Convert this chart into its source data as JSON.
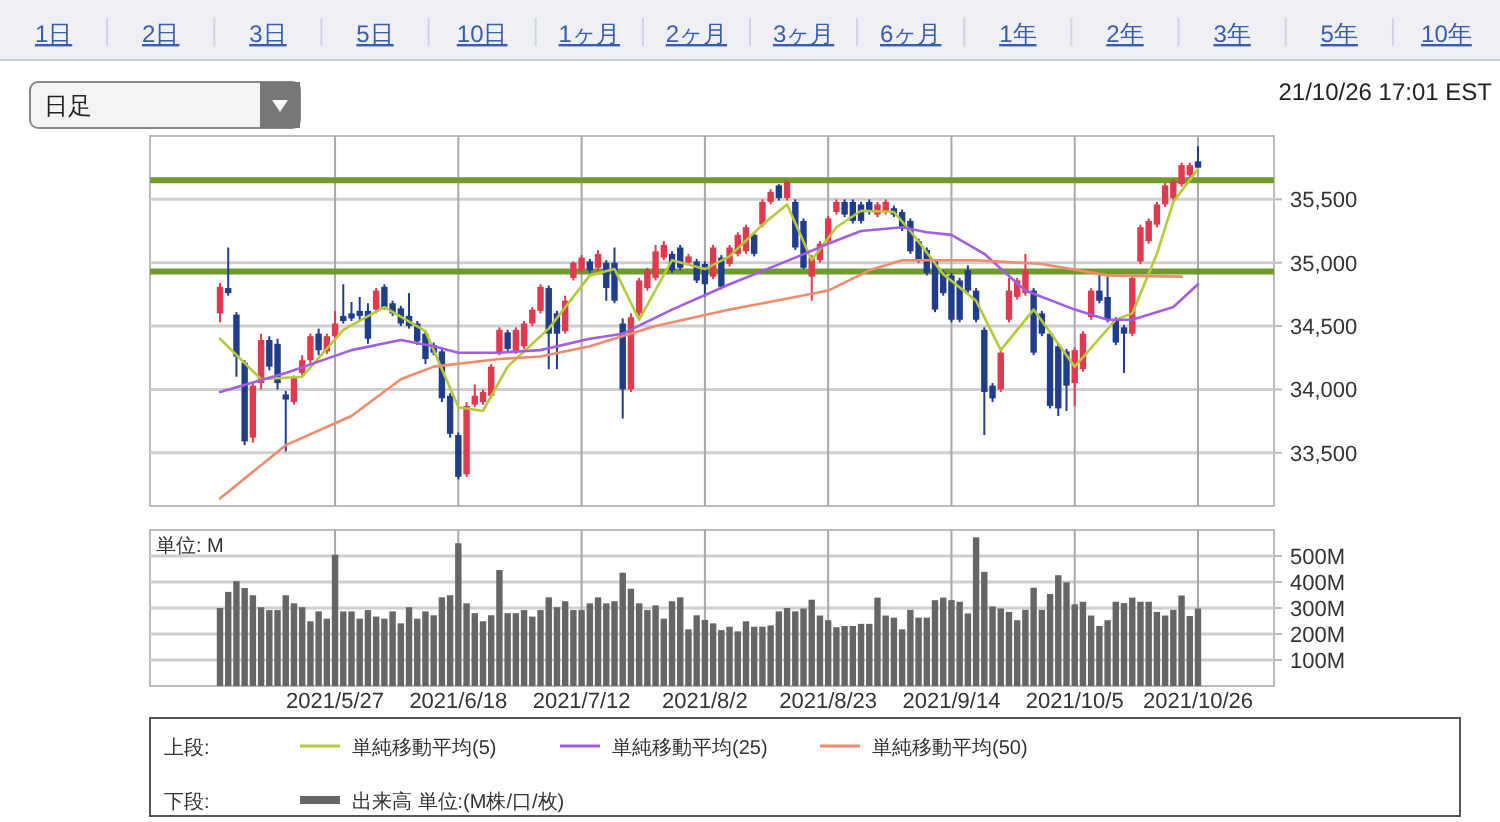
{
  "chart_data": [
    {
      "type": "candlestick",
      "legend": "bottom",
      "legend_title": "上段:",
      "grid": true,
      "tick_labels": "y",
      "annotations": [
        "1日",
        "2日",
        "3日",
        "5日",
        "10日",
        "1ヶ月",
        "2ヶ月",
        "3ヶ月",
        "6ヶ月",
        "1年",
        "2年",
        "3年",
        "5年",
        "10年",
        "日足",
        "21/10/26 17:01 EST"
      ],
      "categories": [
        null,
        null,
        null,
        null,
        null,
        null,
        null,
        null,
        null,
        null,
        null,
        null,
        null,
        null,
        "2021/5/27",
        null,
        null,
        null,
        null,
        null,
        null,
        null,
        null,
        null,
        null,
        null,
        null,
        null,
        null,
        "2021/6/18",
        null,
        null,
        null,
        null,
        null,
        null,
        null,
        null,
        null,
        null,
        null,
        null,
        null,
        null,
        "2021/7/12",
        null,
        null,
        null,
        null,
        null,
        null,
        null,
        null,
        null,
        null,
        null,
        null,
        null,
        null,
        "2021/8/2",
        null,
        null,
        null,
        null,
        null,
        null,
        null,
        null,
        null,
        null,
        null,
        null,
        null,
        null,
        "2021/8/23",
        null,
        null,
        null,
        null,
        null,
        null,
        null,
        null,
        null,
        null,
        null,
        null,
        null,
        null,
        "2021/9/14",
        null,
        null,
        null,
        null,
        null,
        null,
        null,
        null,
        null,
        null,
        null,
        null,
        null,
        null,
        "2021/10/5",
        null,
        null,
        null,
        null,
        null,
        null,
        null,
        null,
        null,
        null,
        null,
        null,
        null,
        null,
        "2021/10/26"
      ],
      "ylim": [
        33080,
        36000
      ],
      "yticks": [
        {
          "value": 33500,
          "label": "33,500"
        },
        {
          "value": 34000,
          "label": "34,000"
        },
        {
          "value": 34500,
          "label": "34,500"
        },
        {
          "value": 35000,
          "label": "35,000"
        },
        {
          "value": 35500,
          "label": "35,500"
        }
      ],
      "ref_lines": [
        {
          "axis": "y",
          "value": 35650,
          "color": "#6f9a2c"
        },
        {
          "axis": "y",
          "value": 34930,
          "color": "#6f9a2c"
        }
      ],
      "ohlc": [
        [
          34600,
          34840,
          34530,
          34810
        ],
        [
          34800,
          35120,
          34740,
          34760
        ],
        [
          34590,
          34610,
          34100,
          34260
        ],
        [
          34210,
          34230,
          33560,
          33590
        ],
        [
          33620,
          34060,
          33580,
          34030
        ],
        [
          34050,
          34440,
          34000,
          34390
        ],
        [
          34390,
          34420,
          34150,
          34180
        ],
        [
          34360,
          34400,
          34000,
          34050
        ],
        [
          33960,
          33990,
          33510,
          33920
        ],
        [
          33900,
          34110,
          33880,
          34100
        ],
        [
          34130,
          34270,
          34110,
          34230
        ],
        [
          34230,
          34440,
          34200,
          34420
        ],
        [
          34440,
          34480,
          34270,
          34310
        ],
        [
          34300,
          34440,
          34280,
          34420
        ],
        [
          34420,
          34620,
          34400,
          34520
        ],
        [
          34580,
          34830,
          34520,
          34540
        ],
        [
          34600,
          34690,
          34540,
          34560
        ],
        [
          34620,
          34730,
          34540,
          34580
        ],
        [
          34620,
          34680,
          34360,
          34400
        ],
        [
          34630,
          34800,
          34600,
          34780
        ],
        [
          34810,
          34830,
          34630,
          34650
        ],
        [
          34680,
          34700,
          34580,
          34600
        ],
        [
          34640,
          34660,
          34500,
          34520
        ],
        [
          34580,
          34760,
          34480,
          34500
        ],
        [
          34520,
          34540,
          34350,
          34380
        ],
        [
          34440,
          34460,
          34200,
          34240
        ],
        [
          34350,
          34370,
          34270,
          34290
        ],
        [
          34300,
          34320,
          33900,
          33930
        ],
        [
          33950,
          33970,
          33620,
          33650
        ],
        [
          33640,
          33660,
          33290,
          33310
        ],
        [
          33330,
          33900,
          33310,
          33870
        ],
        [
          33880,
          34040,
          33860,
          33950
        ],
        [
          33900,
          34000,
          33880,
          33980
        ],
        [
          33950,
          34200,
          33930,
          34180
        ],
        [
          34290,
          34490,
          34270,
          34470
        ],
        [
          34450,
          34470,
          34300,
          34320
        ],
        [
          34300,
          34490,
          34280,
          34470
        ],
        [
          34340,
          34540,
          34320,
          34520
        ],
        [
          34520,
          34650,
          34500,
          34630
        ],
        [
          34620,
          34830,
          34600,
          34810
        ],
        [
          34800,
          34820,
          34160,
          34440
        ],
        [
          34600,
          34620,
          34160,
          34440
        ],
        [
          34460,
          34740,
          34440,
          34700
        ],
        [
          34880,
          35010,
          34860,
          35000
        ],
        [
          34940,
          35060,
          34920,
          35040
        ],
        [
          35010,
          35030,
          34920,
          34940
        ],
        [
          34960,
          35100,
          34940,
          35070
        ],
        [
          35000,
          35020,
          34700,
          34800
        ],
        [
          35000,
          35120,
          34680,
          34700
        ],
        [
          34520,
          34560,
          33770,
          34000
        ],
        [
          34000,
          34600,
          33980,
          34570
        ],
        [
          34600,
          34880,
          34580,
          34860
        ],
        [
          34800,
          34960,
          34780,
          34940
        ],
        [
          34880,
          35140,
          34860,
          35090
        ],
        [
          35040,
          35170,
          35020,
          35140
        ],
        [
          35070,
          35090,
          34920,
          34940
        ],
        [
          35120,
          35140,
          34940,
          34960
        ],
        [
          35000,
          35070,
          34980,
          35050
        ],
        [
          35010,
          35030,
          34840,
          34860
        ],
        [
          34990,
          35010,
          34730,
          34830
        ],
        [
          34890,
          35140,
          34870,
          35120
        ],
        [
          35040,
          35060,
          34790,
          34810
        ],
        [
          34990,
          35140,
          34970,
          35120
        ],
        [
          35070,
          35240,
          35050,
          35220
        ],
        [
          35090,
          35300,
          35070,
          35280
        ],
        [
          35220,
          35240,
          35050,
          35070
        ],
        [
          35300,
          35500,
          35280,
          35480
        ],
        [
          35480,
          35580,
          35460,
          35560
        ],
        [
          35610,
          35620,
          35490,
          35510
        ],
        [
          35510,
          35650,
          35490,
          35640
        ],
        [
          35480,
          35500,
          35100,
          35120
        ],
        [
          35330,
          35350,
          34950,
          34960
        ],
        [
          34890,
          35060,
          34700,
          35040
        ],
        [
          35020,
          35170,
          35000,
          35150
        ],
        [
          35170,
          35370,
          35150,
          35350
        ],
        [
          35400,
          35500,
          35380,
          35480
        ],
        [
          35480,
          35500,
          35360,
          35380
        ],
        [
          35480,
          35500,
          35310,
          35330
        ],
        [
          35460,
          35480,
          35310,
          35330
        ],
        [
          35480,
          35500,
          35380,
          35400
        ],
        [
          35380,
          35480,
          35360,
          35460
        ],
        [
          35400,
          35500,
          35380,
          35480
        ],
        [
          35430,
          35450,
          35360,
          35380
        ],
        [
          35400,
          35420,
          35250,
          35270
        ],
        [
          35330,
          35350,
          35070,
          35090
        ],
        [
          35170,
          35190,
          35000,
          35020
        ],
        [
          35100,
          35120,
          34900,
          34920
        ],
        [
          35010,
          35030,
          34610,
          34630
        ],
        [
          34920,
          34940,
          34740,
          34760
        ],
        [
          34900,
          34920,
          34530,
          34550
        ],
        [
          34860,
          34880,
          34530,
          34550
        ],
        [
          34940,
          34980,
          34760,
          34780
        ],
        [
          34780,
          34800,
          34530,
          34550
        ],
        [
          34470,
          34490,
          33640,
          33980
        ],
        [
          34030,
          34050,
          33900,
          33930
        ],
        [
          34000,
          34310,
          33980,
          34290
        ],
        [
          34550,
          34880,
          34530,
          34780
        ],
        [
          34730,
          34880,
          34710,
          34860
        ],
        [
          34760,
          35070,
          34740,
          34940
        ],
        [
          34780,
          34800,
          34270,
          34290
        ],
        [
          34600,
          34620,
          34420,
          34440
        ],
        [
          34440,
          34460,
          33850,
          33870
        ],
        [
          34340,
          34360,
          33790,
          33850
        ],
        [
          34300,
          34320,
          33830,
          34030
        ],
        [
          34050,
          34330,
          33870,
          34310
        ],
        [
          34160,
          34460,
          34140,
          34440
        ],
        [
          34570,
          34800,
          34550,
          34780
        ],
        [
          34780,
          34910,
          34680,
          34700
        ],
        [
          34730,
          34890,
          34530,
          34550
        ],
        [
          34550,
          34570,
          34350,
          34370
        ],
        [
          34490,
          34510,
          34130,
          34440
        ],
        [
          34440,
          34900,
          34420,
          34880
        ],
        [
          35010,
          35300,
          34990,
          35280
        ],
        [
          35170,
          35350,
          35150,
          35330
        ],
        [
          35300,
          35480,
          35280,
          35460
        ],
        [
          35460,
          35630,
          35440,
          35610
        ],
        [
          35510,
          35660,
          35490,
          35640
        ],
        [
          35620,
          35790,
          35600,
          35770
        ],
        [
          35690,
          35790,
          35670,
          35770
        ],
        [
          35800,
          35920,
          35740,
          35750
        ]
      ],
      "colors": [
        "#e03a4e",
        "#203c8c",
        "#203c8c",
        "#203c8c",
        "#e03a4e",
        "#e03a4e",
        "#203c8c",
        "#203c8c",
        "#203c8c",
        "#e03a4e",
        "#e03a4e",
        "#e03a4e",
        "#203c8c",
        "#e03a4e",
        "#e03a4e",
        "#203c8c",
        "#203c8c",
        "#203c8c",
        "#203c8c",
        "#e03a4e",
        "#203c8c",
        "#203c8c",
        "#203c8c",
        "#203c8c",
        "#203c8c",
        "#203c8c",
        "#203c8c",
        "#203c8c",
        "#203c8c",
        "#203c8c",
        "#e03a4e",
        "#e03a4e",
        "#e03a4e",
        "#e03a4e",
        "#e03a4e",
        "#203c8c",
        "#e03a4e",
        "#e03a4e",
        "#e03a4e",
        "#e03a4e",
        "#203c8c",
        "#203c8c",
        "#e03a4e",
        "#e03a4e",
        "#e03a4e",
        "#203c8c",
        "#e03a4e",
        "#203c8c",
        "#203c8c",
        "#203c8c",
        "#e03a4e",
        "#e03a4e",
        "#e03a4e",
        "#e03a4e",
        "#e03a4e",
        "#203c8c",
        "#203c8c",
        "#e03a4e",
        "#203c8c",
        "#203c8c",
        "#e03a4e",
        "#203c8c",
        "#e03a4e",
        "#e03a4e",
        "#e03a4e",
        "#203c8c",
        "#e03a4e",
        "#e03a4e",
        "#203c8c",
        "#e03a4e",
        "#203c8c",
        "#203c8c",
        "#e03a4e",
        "#e03a4e",
        "#e03a4e",
        "#e03a4e",
        "#203c8c",
        "#203c8c",
        "#203c8c",
        "#203c8c",
        "#e03a4e",
        "#e03a4e",
        "#203c8c",
        "#203c8c",
        "#203c8c",
        "#203c8c",
        "#203c8c",
        "#203c8c",
        "#203c8c",
        "#203c8c",
        "#203c8c",
        "#203c8c",
        "#203c8c",
        "#203c8c",
        "#203c8c",
        "#e03a4e",
        "#e03a4e",
        "#e03a4e",
        "#e03a4e",
        "#203c8c",
        "#203c8c",
        "#203c8c",
        "#203c8c",
        "#203c8c",
        "#e03a4e",
        "#e03a4e",
        "#e03a4e",
        "#203c8c",
        "#203c8c",
        "#203c8c",
        "#203c8c",
        "#e03a4e",
        "#e03a4e",
        "#e03a4e",
        "#e03a4e",
        "#e03a4e",
        "#e03a4e",
        "#e03a4e",
        "#e03a4e",
        "#203c8c"
      ],
      "series": [
        {
          "type": "line",
          "name": "単純移動平均(5)",
          "color": "#b5c93a",
          "values": [
            34400,
            null,
            null,
            null,
            null,
            34080,
            null,
            null,
            null,
            null,
            34100,
            null,
            null,
            null,
            null,
            34470,
            null,
            null,
            null,
            null,
            34650,
            null,
            null,
            null,
            null,
            34460,
            null,
            null,
            null,
            33860,
            null,
            null,
            33830,
            null,
            null,
            34180,
            null,
            null,
            null,
            null,
            34480,
            null,
            null,
            null,
            null,
            34900,
            null,
            null,
            34950,
            null,
            null,
            34550,
            null,
            null,
            null,
            35020,
            null,
            null,
            null,
            34950,
            null,
            null,
            35050,
            null,
            null,
            null,
            35300,
            null,
            null,
            35460,
            null,
            null,
            35020,
            null,
            null,
            35280,
            null,
            null,
            35410,
            null,
            null,
            null,
            35400,
            null,
            35250,
            null,
            null,
            null,
            34910,
            null,
            null,
            null,
            34700,
            null,
            null,
            34310,
            null,
            null,
            null,
            34630,
            null,
            null,
            null,
            null,
            34180,
            null,
            null,
            null,
            null,
            34550,
            null,
            34600,
            null,
            null,
            35070,
            null,
            35480,
            null,
            null,
            35740
          ]
        },
        {
          "type": "line",
          "name": "単純移動平均(25)",
          "color": "#a35ee0",
          "values": [
            33980,
            null,
            null,
            null,
            null,
            null,
            null,
            null,
            34130,
            null,
            null,
            null,
            null,
            null,
            null,
            null,
            34310,
            null,
            null,
            null,
            null,
            null,
            34390,
            null,
            null,
            null,
            34340,
            null,
            null,
            34290,
            null,
            null,
            null,
            null,
            34290,
            null,
            null,
            null,
            null,
            34310,
            null,
            null,
            null,
            null,
            null,
            34400,
            null,
            null,
            null,
            34440,
            null,
            null,
            null,
            null,
            null,
            34630,
            null,
            null,
            null,
            null,
            null,
            null,
            34830,
            null,
            null,
            null,
            null,
            null,
            null,
            null,
            35040,
            null,
            null,
            null,
            35150,
            null,
            null,
            null,
            35250,
            null,
            null,
            null,
            null,
            35280,
            null,
            null,
            35240,
            null,
            null,
            35220,
            null,
            null,
            null,
            35070,
            null,
            null,
            null,
            null,
            34780,
            null,
            null,
            null,
            null,
            null,
            34630,
            null,
            null,
            null,
            34550,
            null,
            null,
            34550,
            null,
            null,
            null,
            null,
            34650,
            null,
            null,
            34830
          ]
        },
        {
          "type": "line",
          "name": "単純移動平均(50)",
          "color": "#f08c6c",
          "values": [
            33140,
            null,
            null,
            null,
            null,
            null,
            null,
            null,
            33560,
            null,
            null,
            null,
            null,
            null,
            null,
            null,
            33790,
            null,
            null,
            null,
            null,
            null,
            34080,
            null,
            null,
            null,
            34180,
            null,
            null,
            null,
            null,
            null,
            null,
            null,
            34240,
            null,
            null,
            null,
            null,
            34260,
            null,
            null,
            null,
            null,
            null,
            34340,
            null,
            null,
            null,
            null,
            null,
            null,
            null,
            34500,
            null,
            null,
            null,
            null,
            null,
            null,
            null,
            null,
            34630,
            null,
            null,
            null,
            null,
            null,
            null,
            null,
            34730,
            null,
            null,
            null,
            34780,
            null,
            null,
            null,
            null,
            34940,
            null,
            null,
            null,
            35020,
            null,
            null,
            35020,
            null,
            null,
            null,
            null,
            null,
            35020,
            null,
            null,
            null,
            null,
            null,
            null,
            null,
            34990,
            null,
            null,
            null,
            null,
            null,
            null,
            null,
            34900,
            null,
            null,
            null,
            null,
            null,
            null,
            null,
            null,
            34890,
            null,
            null
          ]
        }
      ]
    },
    {
      "type": "bar",
      "legend": "bottom",
      "legend_title": "下段:",
      "grid": true,
      "ylabel": "単位: M",
      "categories": [
        null,
        null,
        null,
        null,
        null,
        null,
        null,
        null,
        null,
        null,
        null,
        null,
        null,
        null,
        "2021/5/27",
        null,
        null,
        null,
        null,
        null,
        null,
        null,
        null,
        null,
        null,
        null,
        null,
        null,
        null,
        "2021/6/18",
        null,
        null,
        null,
        null,
        null,
        null,
        null,
        null,
        null,
        null,
        null,
        null,
        null,
        null,
        "2021/7/12",
        null,
        null,
        null,
        null,
        null,
        null,
        null,
        null,
        null,
        null,
        null,
        null,
        null,
        null,
        "2021/8/2",
        null,
        null,
        null,
        null,
        null,
        null,
        null,
        null,
        null,
        null,
        null,
        null,
        null,
        null,
        "2021/8/23",
        null,
        null,
        null,
        null,
        null,
        null,
        null,
        null,
        null,
        null,
        null,
        null,
        null,
        null,
        "2021/9/14",
        null,
        null,
        null,
        null,
        null,
        null,
        null,
        null,
        null,
        null,
        null,
        null,
        null,
        null,
        "2021/10/5",
        null,
        null,
        null,
        null,
        null,
        null,
        null,
        null,
        null,
        null,
        null,
        null,
        null,
        null,
        "2021/10/26"
      ],
      "ylim": [
        0,
        600
      ],
      "yticks": [
        {
          "value": 100,
          "label": "100M"
        },
        {
          "value": 200,
          "label": "200M"
        },
        {
          "value": 300,
          "label": "300M"
        },
        {
          "value": 400,
          "label": "400M"
        },
        {
          "value": 500,
          "label": "500M"
        }
      ],
      "series": [
        {
          "name": "出来高 単位:(M株/口/枚)",
          "color": "#666666",
          "values": [
            300,
            362,
            403,
            377,
            349,
            303,
            292,
            292,
            349,
            318,
            303,
            249,
            287,
            259,
            505,
            287,
            287,
            259,
            292,
            267,
            259,
            287,
            241,
            303,
            259,
            287,
            272,
            341,
            349,
            549,
            318,
            280,
            249,
            272,
            446,
            280,
            280,
            292,
            267,
            292,
            341,
            303,
            326,
            292,
            292,
            318,
            341,
            318,
            326,
            436,
            374,
            318,
            292,
            310,
            259,
            326,
            341,
            218,
            272,
            254,
            241,
            215,
            228,
            210,
            249,
            228,
            228,
            233,
            287,
            300,
            287,
            298,
            332,
            271,
            253,
            226,
            231,
            231,
            239,
            239,
            340,
            271,
            263,
            218,
            293,
            263,
            263,
            330,
            340,
            330,
            324,
            279,
            572,
            439,
            306,
            298,
            285,
            253,
            293,
            378,
            293,
            354,
            426,
            399,
            314,
            324,
            271,
            231,
            253,
            324,
            319,
            340,
            324,
            324,
            285,
            271,
            293,
            348,
            269,
            298
          ]
        }
      ]
    }
  ]
}
